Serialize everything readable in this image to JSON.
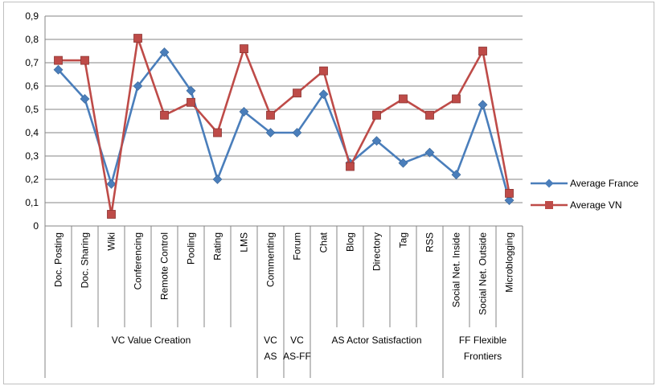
{
  "chart_data": {
    "type": "line",
    "title": "",
    "xlabel": "",
    "ylabel": "",
    "ylim": [
      0,
      0.9
    ],
    "yticks": [
      "0",
      "0,1",
      "0,2",
      "0,3",
      "0,4",
      "0,5",
      "0,6",
      "0,7",
      "0,8",
      "0,9"
    ],
    "grid": true,
    "legend_position": "right",
    "categories": [
      "Doc. Posting",
      "Doc. Sharing",
      "Wiki",
      "Conferencing",
      "Remote Control",
      "Pooling",
      "Rating",
      "LMS",
      "Commenting",
      "Forum",
      "Chat",
      "Blog",
      "Directory",
      "Tag",
      "RSS",
      "Social Net. Inside",
      "Social Net. Outside",
      "Microblogging"
    ],
    "groups": [
      {
        "label": "VC Value Creation",
        "start": 0,
        "end": 7
      },
      {
        "label": "VC AS",
        "start": 8,
        "end": 8
      },
      {
        "label": "VC AS-FF",
        "start": 9,
        "end": 9
      },
      {
        "label": "AS Actor Satisfaction",
        "start": 10,
        "end": 14
      },
      {
        "label": "FF Flexible Frontiers",
        "start": 15,
        "end": 17
      }
    ],
    "series": [
      {
        "name": "Average France",
        "color": "#4a7ebb",
        "marker": "diamond",
        "values": [
          0.67,
          0.545,
          0.18,
          0.6,
          0.745,
          0.58,
          0.2,
          0.49,
          0.4,
          0.4,
          0.565,
          0.27,
          0.365,
          0.27,
          0.315,
          0.22,
          0.52,
          0.11
        ]
      },
      {
        "name": "Average VN",
        "color": "#be4b48",
        "marker": "square",
        "values": [
          0.71,
          0.71,
          0.05,
          0.805,
          0.475,
          0.53,
          0.4,
          0.76,
          0.475,
          0.57,
          0.665,
          0.255,
          0.475,
          0.545,
          0.475,
          0.545,
          0.75,
          0.14
        ]
      }
    ]
  }
}
